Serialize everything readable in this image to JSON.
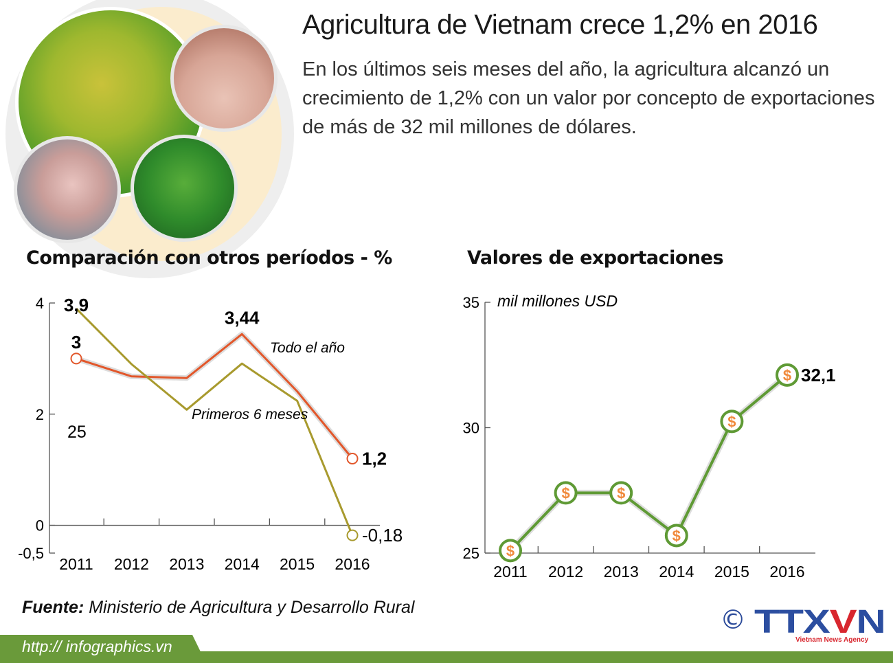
{
  "header": {
    "title": "Agricultura de Vietnam crece 1,2% en 2016",
    "subtitle": "En los últimos seis meses del año, la agricultura alcanzó un crecimiento de 1,2% con un valor por concepto de exportaciones de más de 32 mil millones de dólares."
  },
  "photos": [
    "rice-field-photo",
    "pig-farm-photo",
    "seafood-photo",
    "forest-photo"
  ],
  "chart_data": [
    {
      "type": "line",
      "title": "Comparación con otros períodos - %",
      "categories": [
        "2011",
        "2012",
        "2013",
        "2014",
        "2015",
        "2016"
      ],
      "yticks": [
        "4",
        "2",
        "0",
        "-0,5"
      ],
      "ytick_values": [
        4,
        2,
        0,
        -0.5
      ],
      "ylim": [
        -0.5,
        4
      ],
      "grid": false,
      "stray_label": "25",
      "series": [
        {
          "name": "Todo el año",
          "values": [
            3.0,
            2.68,
            2.65,
            3.44,
            2.41,
            1.2
          ],
          "color": "#e2572b",
          "labels": {
            "0": "3",
            "3": "3,44",
            "5": "1,2"
          }
        },
        {
          "name": "Primeros 6 meses",
          "values": [
            3.9,
            2.9,
            2.08,
            2.91,
            2.24,
            -0.18
          ],
          "color": "#a89a2e",
          "labels": {
            "0": "3,9",
            "5": "-0,18"
          }
        }
      ]
    },
    {
      "type": "line",
      "title": "Valores de exportaciones",
      "ylabel": "mil millones USD",
      "categories": [
        "2011",
        "2012",
        "2013",
        "2014",
        "2015",
        "2016"
      ],
      "yticks": [
        "35",
        "30",
        "25"
      ],
      "ytick_values": [
        35,
        30,
        25
      ],
      "ylim": [
        25,
        35
      ],
      "grid": false,
      "marker_icon": "dollar-icon",
      "marker_symbol": "$",
      "series": [
        {
          "values": [
            25.1,
            27.4,
            27.4,
            25.7,
            30.25,
            32.1
          ],
          "color": "#5f9a35",
          "marker_color": "#f08a3c",
          "labels": {
            "5": "32,1"
          }
        }
      ]
    }
  ],
  "footer": {
    "source_label": "Fuente:",
    "source_text": " Ministerio de Agricultura y Desarrollo Rural",
    "url": "http:// infographics.vn",
    "copyright": "©",
    "logo_text": "TTXVN",
    "logo_subtitle": "Vietnam News Agency"
  },
  "colors": {
    "accent_green": "#6a9a3a",
    "logo_blue": "#2c4ea0",
    "logo_red": "#d8262e"
  }
}
